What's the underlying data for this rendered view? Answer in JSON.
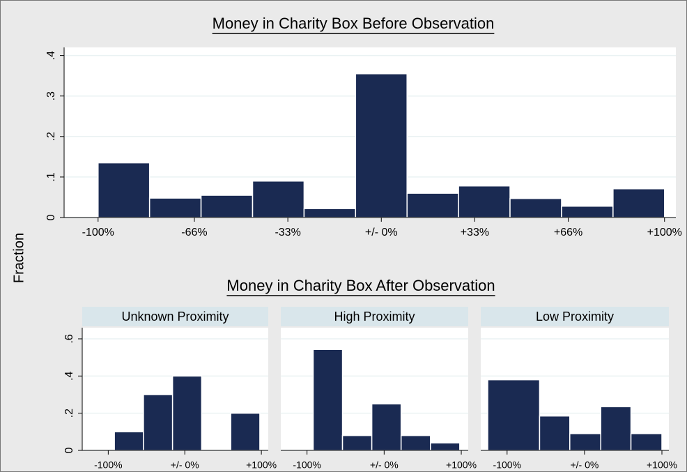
{
  "axis_label": "Fraction",
  "group_title": "Money in Charity Box After Observation",
  "chart_data": [
    {
      "type": "histogram",
      "title": "Money in Charity Box Before Observation",
      "bins": [
        -100,
        -81.82,
        -63.64,
        -45.45,
        -27.27,
        -9.09,
        9.09,
        27.27,
        45.45,
        63.64,
        81.82,
        100
      ],
      "values": [
        0.135,
        0.048,
        0.055,
        0.09,
        0.022,
        0.355,
        0.06,
        0.078,
        0.047,
        0.028,
        0.071
      ],
      "color": "#1a2a52",
      "grid": true,
      "xlim": [
        -112,
        104
      ],
      "ylim": [
        0,
        0.42
      ],
      "xticks": [
        {
          "value": -100,
          "label": "-100%"
        },
        {
          "value": -66,
          "label": "-66%"
        },
        {
          "value": -33,
          "label": "-33%"
        },
        {
          "value": 0,
          "label": "+/- 0%"
        },
        {
          "value": 33,
          "label": "+33%"
        },
        {
          "value": 66,
          "label": "+66%"
        },
        {
          "value": 100,
          "label": "+100%"
        }
      ],
      "yticks": [
        0,
        {
          "value": 0.1,
          "label": ".1"
        },
        {
          "value": 0.2,
          "label": ".2"
        },
        {
          "value": 0.3,
          "label": ".3"
        },
        {
          "value": 0.4,
          "label": ".4"
        }
      ]
    },
    {
      "type": "histogram",
      "title": "Unknown Proximity",
      "bins": [
        -92,
        -54,
        -16,
        22,
        60,
        98
      ],
      "values": [
        0.1,
        0.3,
        0.4,
        0,
        0.2
      ],
      "color": "#1a2a52",
      "grid": true,
      "xlim": [
        -134,
        109
      ],
      "ylim": [
        0,
        0.66
      ],
      "xticks": [
        {
          "value": -100,
          "label": "-100%"
        },
        {
          "value": 0,
          "label": "+/- 0%"
        },
        {
          "value": 100,
          "label": "+100%"
        }
      ],
      "yticks": [
        0,
        {
          "value": 0.2,
          "label": ".2"
        },
        {
          "value": 0.4,
          "label": ".4"
        },
        {
          "value": 0.6,
          "label": ".6"
        }
      ]
    },
    {
      "type": "histogram",
      "title": "High Proximity",
      "bins": [
        -92,
        -54,
        -16,
        22,
        60,
        98
      ],
      "values": [
        0.543,
        0.08,
        0.25,
        0.08,
        0.04
      ],
      "color": "#1a2a52",
      "grid": true,
      "xlim": [
        -134,
        109
      ],
      "ylim": [
        0,
        0.66
      ],
      "xticks": [
        {
          "value": -100,
          "label": "-100%"
        },
        {
          "value": 0,
          "label": "+/- 0%"
        },
        {
          "value": 100,
          "label": "+100%"
        }
      ]
    },
    {
      "type": "histogram",
      "title": "Low Proximity",
      "bins": [
        -125,
        -58,
        -19,
        21,
        60,
        100
      ],
      "values": [
        0.38,
        0.185,
        0.09,
        0.235,
        0.09
      ],
      "color": "#1a2a52",
      "grid": true,
      "xlim": [
        -134,
        109
      ],
      "ylim": [
        0,
        0.66
      ],
      "xticks": [
        {
          "value": -100,
          "label": "-100%"
        },
        {
          "value": 0,
          "label": "+/- 0%"
        },
        {
          "value": 100,
          "label": "+100%"
        }
      ]
    }
  ]
}
